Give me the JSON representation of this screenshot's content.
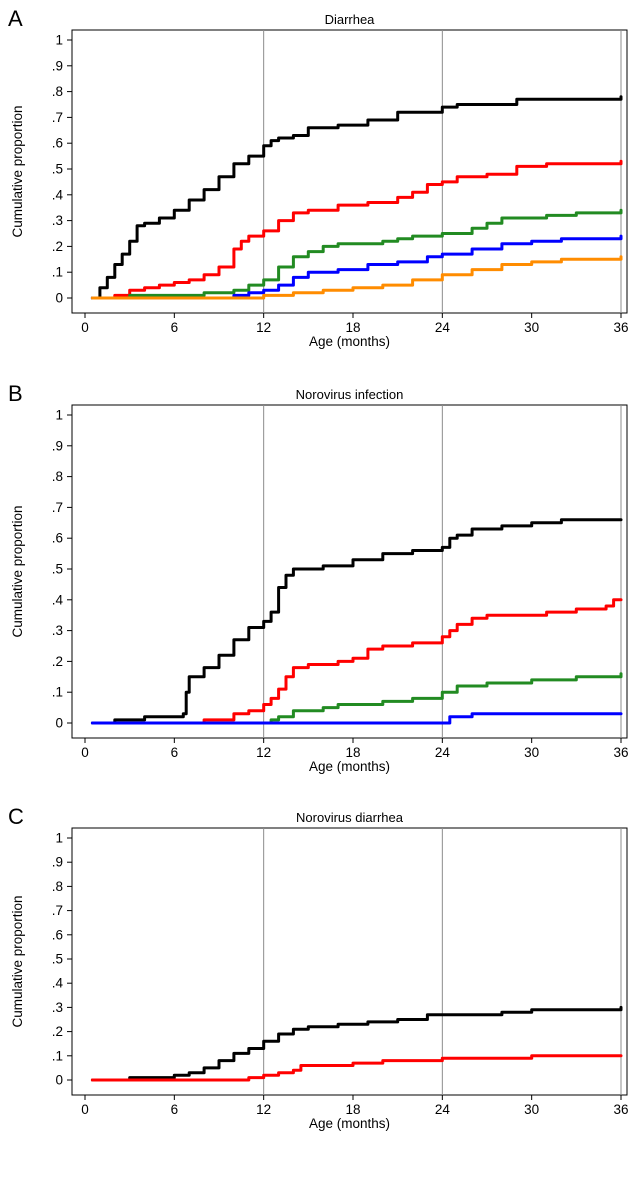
{
  "chart_data": [
    {
      "type": "line",
      "panel": "A",
      "title": "Diarrhea",
      "xlabel": "Age (months)",
      "ylabel": "Cumulative proportion",
      "xlim": [
        0,
        36
      ],
      "ylim": [
        0,
        1
      ],
      "xticks": [
        0,
        6,
        12,
        18,
        24,
        30,
        36
      ],
      "xtick_labels": [
        "0",
        "6",
        "12",
        "18",
        "24",
        "30",
        "36"
      ],
      "yticks": [
        0,
        0.1,
        0.2,
        0.3,
        0.4,
        0.5,
        0.6,
        0.7,
        0.8,
        0.9,
        1
      ],
      "ytick_labels": [
        "0",
        ".1",
        ".2",
        ".3",
        ".4",
        ".5",
        ".6",
        ".7",
        ".8",
        ".9",
        "1"
      ],
      "reference_lines_x": [
        12,
        24,
        36
      ],
      "series": [
        {
          "color": "#000000",
          "points": [
            [
              0.5,
              0
            ],
            [
              1,
              0.04
            ],
            [
              1.5,
              0.08
            ],
            [
              2,
              0.13
            ],
            [
              2.5,
              0.17
            ],
            [
              3,
              0.22
            ],
            [
              3.5,
              0.28
            ],
            [
              4,
              0.29
            ],
            [
              5,
              0.31
            ],
            [
              6,
              0.34
            ],
            [
              7,
              0.38
            ],
            [
              8,
              0.42
            ],
            [
              9,
              0.47
            ],
            [
              10,
              0.52
            ],
            [
              11,
              0.55
            ],
            [
              12,
              0.59
            ],
            [
              12.5,
              0.61
            ],
            [
              13,
              0.62
            ],
            [
              14,
              0.63
            ],
            [
              15,
              0.66
            ],
            [
              17,
              0.67
            ],
            [
              19,
              0.69
            ],
            [
              21,
              0.72
            ],
            [
              24,
              0.74
            ],
            [
              25,
              0.75
            ],
            [
              27,
              0.75
            ],
            [
              29,
              0.77
            ],
            [
              33,
              0.77
            ],
            [
              36,
              0.78
            ]
          ]
        },
        {
          "color": "#ff0000",
          "points": [
            [
              0.5,
              0
            ],
            [
              2,
              0.01
            ],
            [
              3,
              0.03
            ],
            [
              4,
              0.04
            ],
            [
              5,
              0.05
            ],
            [
              6,
              0.06
            ],
            [
              7,
              0.07
            ],
            [
              8,
              0.09
            ],
            [
              9,
              0.12
            ],
            [
              10,
              0.19
            ],
            [
              10.5,
              0.22
            ],
            [
              11,
              0.24
            ],
            [
              12,
              0.26
            ],
            [
              13,
              0.3
            ],
            [
              14,
              0.33
            ],
            [
              15,
              0.34
            ],
            [
              17,
              0.36
            ],
            [
              19,
              0.37
            ],
            [
              21,
              0.39
            ],
            [
              22,
              0.41
            ],
            [
              23,
              0.44
            ],
            [
              24,
              0.45
            ],
            [
              25,
              0.47
            ],
            [
              27,
              0.48
            ],
            [
              29,
              0.51
            ],
            [
              31,
              0.52
            ],
            [
              36,
              0.53
            ]
          ]
        },
        {
          "color": "#228b22",
          "points": [
            [
              0.5,
              0
            ],
            [
              3,
              0.01
            ],
            [
              8,
              0.02
            ],
            [
              10,
              0.03
            ],
            [
              11,
              0.05
            ],
            [
              12,
              0.07
            ],
            [
              13,
              0.12
            ],
            [
              14,
              0.16
            ],
            [
              15,
              0.18
            ],
            [
              16,
              0.2
            ],
            [
              17,
              0.21
            ],
            [
              20,
              0.22
            ],
            [
              21,
              0.23
            ],
            [
              22,
              0.24
            ],
            [
              24,
              0.25
            ],
            [
              26,
              0.27
            ],
            [
              27,
              0.29
            ],
            [
              28,
              0.31
            ],
            [
              31,
              0.32
            ],
            [
              33,
              0.33
            ],
            [
              36,
              0.34
            ]
          ]
        },
        {
          "color": "#0000ff",
          "points": [
            [
              0.5,
              0
            ],
            [
              10,
              0.01
            ],
            [
              11,
              0.02
            ],
            [
              12,
              0.03
            ],
            [
              13,
              0.05
            ],
            [
              14,
              0.08
            ],
            [
              15,
              0.1
            ],
            [
              17,
              0.11
            ],
            [
              19,
              0.13
            ],
            [
              21,
              0.14
            ],
            [
              23,
              0.16
            ],
            [
              24,
              0.17
            ],
            [
              26,
              0.19
            ],
            [
              28,
              0.21
            ],
            [
              30,
              0.22
            ],
            [
              32,
              0.23
            ],
            [
              36,
              0.24
            ]
          ]
        },
        {
          "color": "#ff8c00",
          "points": [
            [
              0.5,
              0
            ],
            [
              12,
              0.01
            ],
            [
              14,
              0.02
            ],
            [
              16,
              0.03
            ],
            [
              18,
              0.04
            ],
            [
              20,
              0.05
            ],
            [
              22,
              0.07
            ],
            [
              24,
              0.09
            ],
            [
              26,
              0.11
            ],
            [
              28,
              0.13
            ],
            [
              30,
              0.14
            ],
            [
              32,
              0.15
            ],
            [
              36,
              0.16
            ]
          ]
        }
      ]
    },
    {
      "type": "line",
      "panel": "B",
      "title": "Norovirus infection",
      "xlabel": "Age (months)",
      "ylabel": "Cumulative proportion",
      "xlim": [
        0,
        36
      ],
      "ylim": [
        0,
        1
      ],
      "xticks": [
        0,
        6,
        12,
        18,
        24,
        30,
        36
      ],
      "xtick_labels": [
        "0",
        "6",
        "12",
        "18",
        "24",
        "30",
        "36"
      ],
      "yticks": [
        0,
        0.1,
        0.2,
        0.3,
        0.4,
        0.5,
        0.6,
        0.7,
        0.8,
        0.9,
        1
      ],
      "ytick_labels": [
        "0",
        ".1",
        ".2",
        ".3",
        ".4",
        ".5",
        ".6",
        ".7",
        ".8",
        ".9",
        "1"
      ],
      "reference_lines_x": [
        12,
        24,
        36
      ],
      "series": [
        {
          "color": "#000000",
          "points": [
            [
              0.5,
              0
            ],
            [
              2,
              0.01
            ],
            [
              4,
              0.02
            ],
            [
              5,
              0.02
            ],
            [
              6.6,
              0.03
            ],
            [
              6.8,
              0.1
            ],
            [
              7,
              0.15
            ],
            [
              8,
              0.18
            ],
            [
              9,
              0.22
            ],
            [
              10,
              0.27
            ],
            [
              11,
              0.31
            ],
            [
              12,
              0.33
            ],
            [
              12.5,
              0.36
            ],
            [
              13,
              0.44
            ],
            [
              13.5,
              0.48
            ],
            [
              14,
              0.5
            ],
            [
              16,
              0.51
            ],
            [
              18,
              0.53
            ],
            [
              20,
              0.55
            ],
            [
              22,
              0.56
            ],
            [
              24,
              0.57
            ],
            [
              24.5,
              0.6
            ],
            [
              25,
              0.61
            ],
            [
              26,
              0.63
            ],
            [
              28,
              0.64
            ],
            [
              30,
              0.65
            ],
            [
              32,
              0.66
            ],
            [
              36,
              0.66
            ]
          ]
        },
        {
          "color": "#ff0000",
          "points": [
            [
              6,
              0
            ],
            [
              8,
              0.01
            ],
            [
              10,
              0.03
            ],
            [
              11,
              0.04
            ],
            [
              12,
              0.06
            ],
            [
              12.5,
              0.08
            ],
            [
              13,
              0.11
            ],
            [
              13.5,
              0.15
            ],
            [
              14,
              0.18
            ],
            [
              15,
              0.19
            ],
            [
              17,
              0.2
            ],
            [
              18,
              0.21
            ],
            [
              19,
              0.24
            ],
            [
              20,
              0.25
            ],
            [
              22,
              0.26
            ],
            [
              24,
              0.28
            ],
            [
              24.5,
              0.3
            ],
            [
              25,
              0.32
            ],
            [
              26,
              0.34
            ],
            [
              27,
              0.35
            ],
            [
              29,
              0.35
            ],
            [
              31,
              0.36
            ],
            [
              33,
              0.37
            ],
            [
              35,
              0.38
            ],
            [
              35.5,
              0.4
            ],
            [
              36,
              0.4
            ]
          ]
        },
        {
          "color": "#228b22",
          "points": [
            [
              11,
              0
            ],
            [
              12.5,
              0.01
            ],
            [
              13,
              0.02
            ],
            [
              14,
              0.04
            ],
            [
              16,
              0.05
            ],
            [
              17,
              0.06
            ],
            [
              18,
              0.06
            ],
            [
              20,
              0.07
            ],
            [
              22,
              0.08
            ],
            [
              24,
              0.1
            ],
            [
              25,
              0.12
            ],
            [
              27,
              0.13
            ],
            [
              30,
              0.14
            ],
            [
              33,
              0.15
            ],
            [
              36,
              0.16
            ]
          ]
        },
        {
          "color": "#0000ff",
          "points": [
            [
              0.5,
              0
            ],
            [
              24,
              0
            ],
            [
              24.5,
              0.02
            ],
            [
              26,
              0.03
            ],
            [
              36,
              0.03
            ]
          ]
        }
      ]
    },
    {
      "type": "line",
      "panel": "C",
      "title": "Norovirus diarrhea",
      "xlabel": "Age (months)",
      "ylabel": "Cumulative proportion",
      "xlim": [
        0,
        36
      ],
      "ylim": [
        0,
        1
      ],
      "xticks": [
        0,
        6,
        12,
        18,
        24,
        30,
        36
      ],
      "xtick_labels": [
        "0",
        "6",
        "12",
        "18",
        "24",
        "30",
        "36"
      ],
      "yticks": [
        0,
        0.1,
        0.2,
        0.3,
        0.4,
        0.5,
        0.6,
        0.7,
        0.8,
        0.9,
        1
      ],
      "ytick_labels": [
        "0",
        ".1",
        ".2",
        ".3",
        ".4",
        ".5",
        ".6",
        ".7",
        ".8",
        ".9",
        "1"
      ],
      "reference_lines_x": [
        12,
        24,
        36
      ],
      "series": [
        {
          "color": "#000000",
          "points": [
            [
              0.5,
              0
            ],
            [
              3,
              0.01
            ],
            [
              6,
              0.02
            ],
            [
              7,
              0.03
            ],
            [
              8,
              0.05
            ],
            [
              9,
              0.08
            ],
            [
              10,
              0.11
            ],
            [
              11,
              0.13
            ],
            [
              12,
              0.16
            ],
            [
              13,
              0.19
            ],
            [
              14,
              0.21
            ],
            [
              15,
              0.22
            ],
            [
              17,
              0.23
            ],
            [
              19,
              0.24
            ],
            [
              21,
              0.25
            ],
            [
              23,
              0.27
            ],
            [
              25,
              0.27
            ],
            [
              28,
              0.28
            ],
            [
              30,
              0.29
            ],
            [
              33,
              0.29
            ],
            [
              36,
              0.3
            ]
          ]
        },
        {
          "color": "#ff0000",
          "points": [
            [
              0.5,
              0
            ],
            [
              10,
              0
            ],
            [
              11,
              0.01
            ],
            [
              12,
              0.02
            ],
            [
              13,
              0.03
            ],
            [
              14,
              0.04
            ],
            [
              14.5,
              0.06
            ],
            [
              16,
              0.06
            ],
            [
              18,
              0.07
            ],
            [
              20,
              0.08
            ],
            [
              22,
              0.08
            ],
            [
              24,
              0.09
            ],
            [
              27,
              0.09
            ],
            [
              30,
              0.1
            ],
            [
              36,
              0.1
            ]
          ]
        }
      ]
    }
  ]
}
